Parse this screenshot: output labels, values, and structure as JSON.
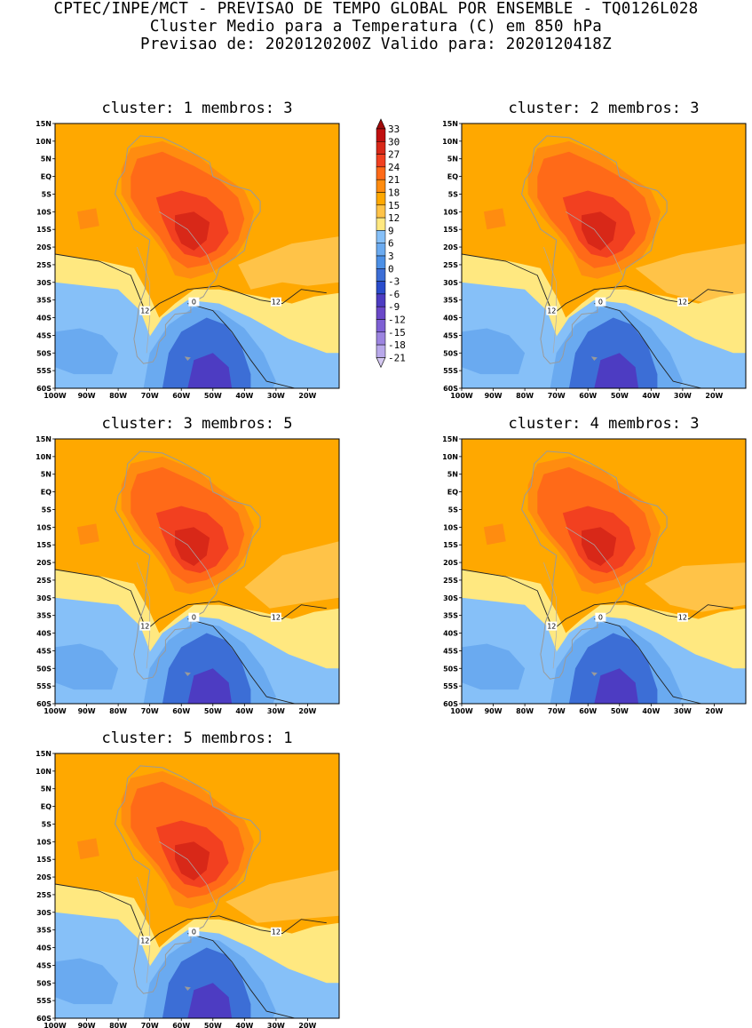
{
  "header": {
    "line1": "CPTEC/INPE/MCT - PREVISAO DE TEMPO GLOBAL POR ENSEMBLE - TQ0126L028",
    "line2": "Cluster Medio para a Temperatura (C) em 850 hPa",
    "line3": "Previsao de: 2020120200Z   Valido para: 2020120418Z"
  },
  "colors": {
    "levels": [
      "#d4c8f0",
      "#b8a8ea",
      "#9c84e0",
      "#7e60d4",
      "#6a48c8",
      "#4d3cc2",
      "#2a4ccc",
      "#3c6ed6",
      "#4c90e6",
      "#6aaaf0",
      "#86c0f8",
      "#ffe880",
      "#ffc348",
      "#ffa800",
      "#ff8c10",
      "#ff6a18",
      "#f24020",
      "#d82818",
      "#c01010",
      "#a00a0a"
    ]
  },
  "chart_data": {
    "type": "contour-map-panels",
    "variable": "Temperatura (C) em 850 hPa",
    "colorbar": {
      "ticks": [
        33,
        30,
        27,
        24,
        21,
        18,
        15,
        12,
        9,
        6,
        3,
        0,
        -3,
        -6,
        -9,
        -12,
        -15,
        -18,
        -21
      ]
    },
    "axes": {
      "lon_min": -100,
      "lon_max": -10,
      "lat_min": -60,
      "lat_max": 15,
      "lat_ticks": [
        "15N",
        "10N",
        "5N",
        "EQ",
        "5S",
        "10S",
        "15S",
        "20S",
        "25S",
        "30S",
        "35S",
        "40S",
        "45S",
        "50S",
        "55S",
        "60S"
      ],
      "lon_ticks": [
        "100W",
        "90W",
        "80W",
        "70W",
        "60W",
        "50W",
        "40W",
        "30W",
        "20W"
      ]
    },
    "contour_labels": [
      "12",
      "0"
    ],
    "panels": [
      {
        "title": "cluster: 1   membros: 3",
        "cluster": 1,
        "members": 3
      },
      {
        "title": "cluster: 2   membros: 3",
        "cluster": 2,
        "members": 3
      },
      {
        "title": "cluster: 3   membros: 5",
        "cluster": 3,
        "members": 5
      },
      {
        "title": "cluster: 4   membros: 3",
        "cluster": 4,
        "members": 3
      },
      {
        "title": "cluster: 5   membros: 1",
        "cluster": 5,
        "members": 1
      }
    ]
  }
}
